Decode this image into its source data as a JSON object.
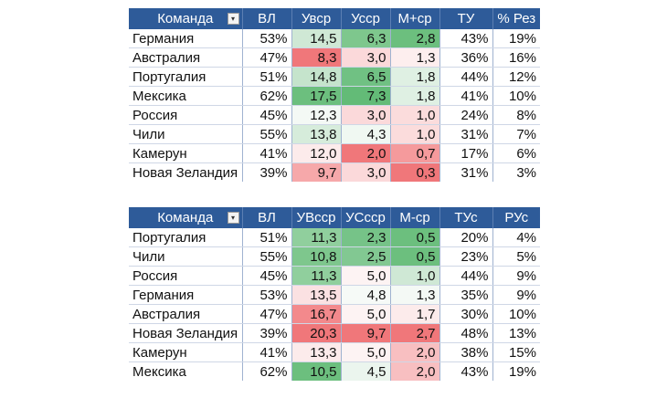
{
  "tables": [
    {
      "headers": [
        "Команда",
        "ВЛ",
        "Увср",
        "Усср",
        "М+ср",
        "ТУ",
        "% Рез"
      ],
      "rows": [
        {
          "team": "Германия",
          "vl": "53%",
          "a": "14,5",
          "b": "6,3",
          "c": "2,8",
          "d": "43%",
          "e": "19%",
          "a_color": "#cfe8d5",
          "b_color": "#7ec78d",
          "c_color": "#6cbf7e"
        },
        {
          "team": "Австралия",
          "vl": "47%",
          "a": "8,3",
          "b": "3,0",
          "c": "1,3",
          "d": "36%",
          "e": "16%",
          "a_color": "#f0777a",
          "b_color": "#fbd9da",
          "c_color": "#fdeeee"
        },
        {
          "team": "Португалия",
          "vl": "51%",
          "a": "14,8",
          "b": "6,5",
          "c": "1,8",
          "d": "44%",
          "e": "12%",
          "a_color": "#c5e4cc",
          "b_color": "#70c183",
          "c_color": "#dff0e3"
        },
        {
          "team": "Мексика",
          "vl": "62%",
          "a": "17,5",
          "b": "7,3",
          "c": "1,8",
          "d": "41%",
          "e": "10%",
          "a_color": "#6cbf7e",
          "b_color": "#63bb77",
          "c_color": "#dff0e3"
        },
        {
          "team": "Россия",
          "vl": "45%",
          "a": "12,3",
          "b": "3,0",
          "c": "1,0",
          "d": "24%",
          "e": "8%",
          "a_color": "#f4f9f5",
          "b_color": "#fbd9da",
          "c_color": "#fbdcdc"
        },
        {
          "team": "Чили",
          "vl": "55%",
          "a": "13,8",
          "b": "4,3",
          "c": "1,0",
          "d": "31%",
          "e": "7%",
          "a_color": "#d6ecdb",
          "b_color": "#f0f8f2",
          "c_color": "#fbdcdc"
        },
        {
          "team": "Камерун",
          "vl": "41%",
          "a": "12,0",
          "b": "2,0",
          "c": "0,7",
          "d": "17%",
          "e": "6%",
          "a_color": "#fcebeb",
          "b_color": "#f0777a",
          "c_color": "#f59a9c"
        },
        {
          "team": "Новая Зеландия",
          "vl": "39%",
          "a": "9,7",
          "b": "3,0",
          "c": "0,3",
          "d": "31%",
          "e": "3%",
          "a_color": "#f6a8aa",
          "b_color": "#fbd9da",
          "c_color": "#f0777a"
        }
      ]
    },
    {
      "headers": [
        "Команда",
        "ВЛ",
        "УВсср",
        "УСсср",
        "М-ср",
        "ТУс",
        "РУс"
      ],
      "rows": [
        {
          "team": "Португалия",
          "vl": "51%",
          "a": "11,3",
          "b": "2,3",
          "c": "0,5",
          "d": "20%",
          "e": "4%",
          "a_color": "#90cf9d",
          "b_color": "#76c388",
          "c_color": "#6cbf7e"
        },
        {
          "team": "Чили",
          "vl": "55%",
          "a": "10,8",
          "b": "2,5",
          "c": "0,5",
          "d": "23%",
          "e": "5%",
          "a_color": "#7ec78d",
          "b_color": "#82c892",
          "c_color": "#6cbf7e"
        },
        {
          "team": "Россия",
          "vl": "45%",
          "a": "11,3",
          "b": "5,0",
          "c": "1,0",
          "d": "44%",
          "e": "9%",
          "a_color": "#90cf9d",
          "b_color": "#fdf3f3",
          "c_color": "#cfe8d5"
        },
        {
          "team": "Германия",
          "vl": "53%",
          "a": "13,5",
          "b": "4,8",
          "c": "1,3",
          "d": "35%",
          "e": "9%",
          "a_color": "#fbe1e2",
          "b_color": "#f6faf7",
          "c_color": "#f4f9f5"
        },
        {
          "team": "Австралия",
          "vl": "47%",
          "a": "16,7",
          "b": "5,0",
          "c": "1,7",
          "d": "30%",
          "e": "10%",
          "a_color": "#f3898c",
          "b_color": "#fdf3f3",
          "c_color": "#fcebeb"
        },
        {
          "team": "Новая Зеландия",
          "vl": "39%",
          "a": "20,3",
          "b": "9,7",
          "c": "2,7",
          "d": "48%",
          "e": "13%",
          "a_color": "#f0777a",
          "b_color": "#f0777a",
          "c_color": "#f0777a"
        },
        {
          "team": "Камерун",
          "vl": "41%",
          "a": "13,3",
          "b": "5,0",
          "c": "2,0",
          "d": "38%",
          "e": "15%",
          "a_color": "#fcebeb",
          "b_color": "#fdf3f3",
          "c_color": "#f8bfc1"
        },
        {
          "team": "Мексика",
          "vl": "62%",
          "a": "10,5",
          "b": "4,5",
          "c": "2,0",
          "d": "43%",
          "e": "19%",
          "a_color": "#6cbf7e",
          "b_color": "#ebf5ee",
          "c_color": "#f8bfc1"
        }
      ]
    }
  ],
  "icons": {
    "filter": "filter-dropdown-icon"
  }
}
